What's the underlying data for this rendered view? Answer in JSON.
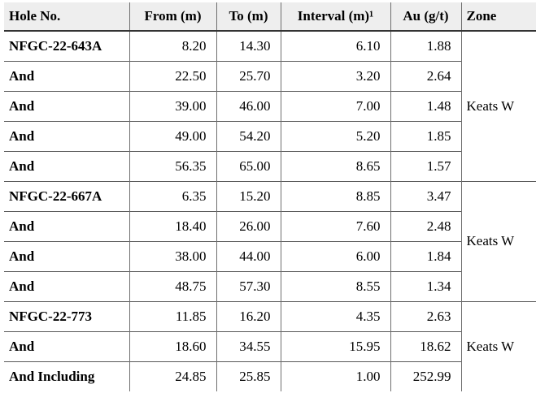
{
  "table": {
    "columns": [
      {
        "key": "hole",
        "label": "Hole No.",
        "align": "left"
      },
      {
        "key": "from",
        "label": "From (m)",
        "align": "center"
      },
      {
        "key": "to",
        "label": "To (m)",
        "align": "center"
      },
      {
        "key": "interval",
        "label": "Interval (m)¹",
        "align": "center"
      },
      {
        "key": "au",
        "label": "Au (g/t)",
        "align": "center"
      },
      {
        "key": "zone",
        "label": "Zone",
        "align": "left"
      }
    ],
    "groups": [
      {
        "zone": "Keats W",
        "rows": [
          {
            "hole": "NFGC-22-643A",
            "from": "8.20",
            "to": "14.30",
            "interval": "6.10",
            "au": "1.88"
          },
          {
            "hole": "And",
            "from": "22.50",
            "to": "25.70",
            "interval": "3.20",
            "au": "2.64"
          },
          {
            "hole": "And",
            "from": "39.00",
            "to": "46.00",
            "interval": "7.00",
            "au": "1.48"
          },
          {
            "hole": "And",
            "from": "49.00",
            "to": "54.20",
            "interval": "5.20",
            "au": "1.85"
          },
          {
            "hole": "And",
            "from": "56.35",
            "to": "65.00",
            "interval": "8.65",
            "au": "1.57"
          }
        ]
      },
      {
        "zone": "Keats W",
        "rows": [
          {
            "hole": "NFGC-22-667A",
            "from": "6.35",
            "to": "15.20",
            "interval": "8.85",
            "au": "3.47"
          },
          {
            "hole": "And",
            "from": "18.40",
            "to": "26.00",
            "interval": "7.60",
            "au": "2.48"
          },
          {
            "hole": "And",
            "from": "38.00",
            "to": "44.00",
            "interval": "6.00",
            "au": "1.84"
          },
          {
            "hole": "And",
            "from": "48.75",
            "to": "57.30",
            "interval": "8.55",
            "au": "1.34"
          }
        ]
      },
      {
        "zone": "Keats W",
        "rows": [
          {
            "hole": "NFGC-22-773",
            "from": "11.85",
            "to": "16.20",
            "interval": "4.35",
            "au": "2.63"
          },
          {
            "hole": "And",
            "from": "18.60",
            "to": "34.55",
            "interval": "15.95",
            "au": "18.62"
          },
          {
            "hole": "And Including",
            "from": "24.85",
            "to": "25.85",
            "interval": "1.00",
            "au": "252.99"
          }
        ]
      }
    ],
    "style": {
      "header_bg": "#eeeeee",
      "text_color": "#000000",
      "vertical_border_color": "#6f6f6f",
      "horizontal_border_color": "#585858",
      "header_underline_color": "#333333"
    }
  }
}
